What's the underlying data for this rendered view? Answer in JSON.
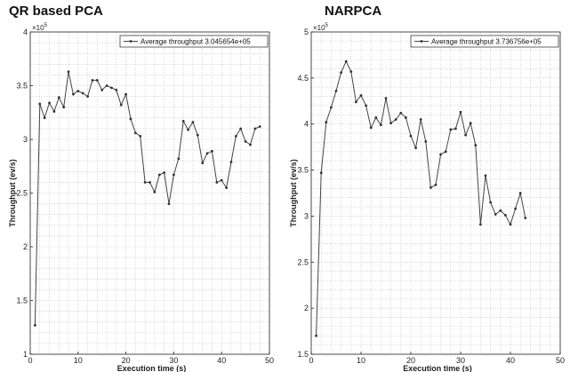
{
  "chart_data": [
    {
      "type": "line",
      "title": "QR based PCA",
      "xlabel": "Execution time (s)",
      "ylabel": "Throughput (ev/s)",
      "y_multiplier": "×10",
      "y_exponent": "5",
      "xlim": [
        0,
        50
      ],
      "ylim": [
        1,
        4
      ],
      "xticks": [
        "0",
        "10",
        "20",
        "30",
        "40",
        "50"
      ],
      "yticks": [
        "1",
        "1.5",
        "2",
        "2.5",
        "3",
        "3.5",
        "4"
      ],
      "grid": true,
      "legend_position": "top-right",
      "series": [
        {
          "name": "Average throughput 3.045654e+05",
          "x": [
            1,
            2,
            3,
            4,
            5,
            6,
            7,
            8,
            9,
            10,
            11,
            12,
            13,
            14,
            15,
            16,
            17,
            18,
            19,
            20,
            21,
            22,
            23,
            24,
            25,
            26,
            27,
            28,
            29,
            30,
            31,
            32,
            33,
            34,
            35,
            36,
            37,
            38,
            39,
            40,
            41,
            42,
            43,
            44,
            45,
            46,
            47,
            48
          ],
          "y": [
            1.27,
            3.33,
            3.2,
            3.34,
            3.26,
            3.39,
            3.3,
            3.63,
            3.42,
            3.45,
            3.43,
            3.4,
            3.55,
            3.55,
            3.46,
            3.5,
            3.48,
            3.46,
            3.32,
            3.42,
            3.19,
            3.06,
            3.03,
            2.6,
            2.6,
            2.51,
            2.67,
            2.69,
            2.4,
            2.67,
            2.82,
            3.17,
            3.09,
            3.16,
            3.04,
            2.78,
            2.87,
            2.89,
            2.6,
            2.62,
            2.55,
            2.79,
            3.03,
            3.1,
            2.98,
            2.95,
            3.1,
            3.12
          ]
        }
      ]
    },
    {
      "type": "line",
      "title": "NARPCA",
      "xlabel": "Execution time (s)",
      "ylabel": "Throughput (ev/s)",
      "y_multiplier": "×10",
      "y_exponent": "5",
      "xlim": [
        0,
        50
      ],
      "ylim": [
        1.5,
        5
      ],
      "xticks": [
        "0",
        "10",
        "20",
        "30",
        "40",
        "50"
      ],
      "yticks": [
        "1.5",
        "2",
        "2.5",
        "3",
        "3.5",
        "4",
        "4.5",
        "5"
      ],
      "grid": true,
      "legend_position": "top-right",
      "series": [
        {
          "name": "Average throughput 3.736756e+05",
          "x": [
            1,
            2,
            3,
            4,
            5,
            6,
            7,
            8,
            9,
            10,
            11,
            12,
            13,
            14,
            15,
            16,
            17,
            18,
            19,
            20,
            21,
            22,
            23,
            24,
            25,
            26,
            27,
            28,
            29,
            30,
            31,
            32,
            33,
            34,
            35,
            36,
            37,
            38,
            39,
            40,
            41,
            42,
            43
          ],
          "y": [
            1.7,
            3.47,
            4.02,
            4.18,
            4.36,
            4.56,
            4.68,
            4.57,
            4.24,
            4.31,
            4.2,
            3.96,
            4.07,
            3.99,
            4.28,
            4.01,
            4.05,
            4.12,
            4.07,
            3.87,
            3.74,
            4.05,
            3.81,
            3.31,
            3.34,
            3.67,
            3.7,
            3.94,
            3.95,
            4.13,
            3.88,
            4.01,
            3.77,
            2.91,
            3.44,
            3.15,
            3.02,
            3.06,
            3.01,
            2.91,
            3.08,
            3.25,
            2.98
          ]
        }
      ]
    }
  ]
}
